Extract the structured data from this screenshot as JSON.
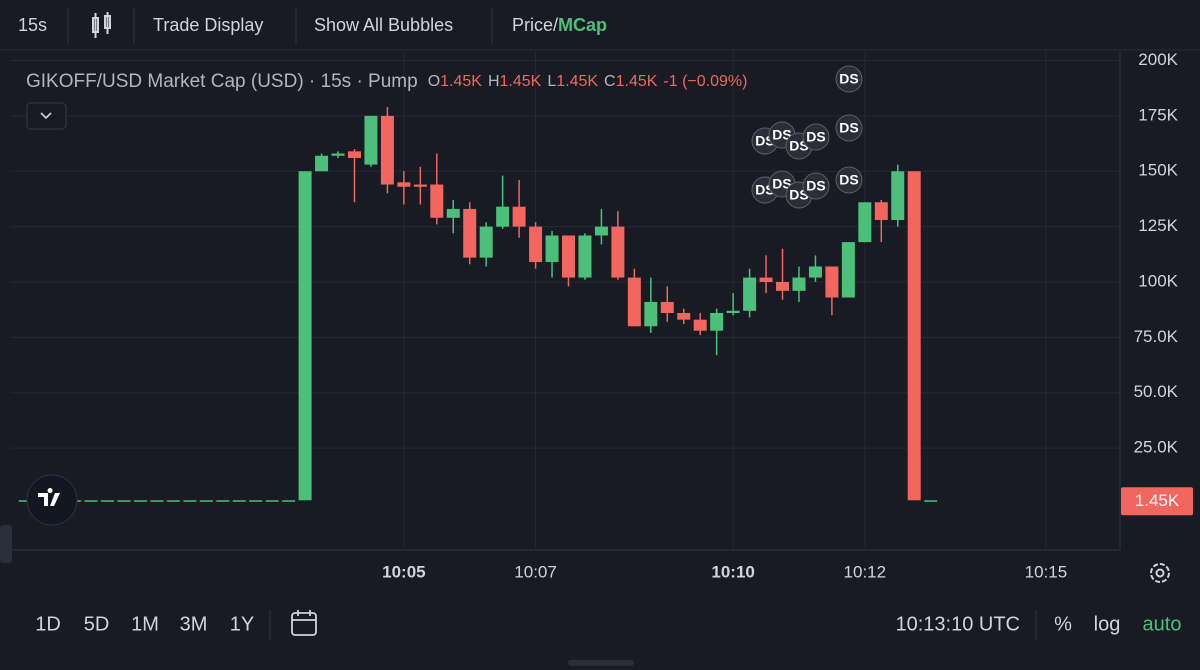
{
  "toolbar": {
    "interval": "15s",
    "trade_display": "Trade Display",
    "bubbles": "Show All Bubbles",
    "price": "Price",
    "slash": "/",
    "mcap": "MCap"
  },
  "chart_data": {
    "type": "candlestick",
    "legend": {
      "title": "GIKOFF/USD Market Cap (USD) · 15s · Pump",
      "o_label": "O",
      "o": "1.45K",
      "h_label": "H",
      "h": "1.45K",
      "l_label": "L",
      "l": "1.45K",
      "c_label": "C",
      "c": "1.45K",
      "change": "-1 (−0.09%)"
    },
    "categories": [
      null,
      null,
      null,
      null,
      null,
      null,
      null,
      null,
      null,
      null,
      null,
      null,
      null,
      null,
      null,
      null,
      null,
      null,
      null,
      null,
      null,
      null,
      null,
      "10:05",
      null,
      null,
      null,
      null,
      null,
      null,
      null,
      "10:07",
      null,
      null,
      null,
      null,
      null,
      null,
      null,
      null,
      null,
      null,
      null,
      "10:10",
      null,
      null,
      null,
      null,
      null,
      null,
      null,
      "10:12",
      null,
      null,
      null,
      null,
      null,
      null,
      null,
      null,
      null,
      null,
      "10:15",
      null,
      null,
      null,
      null
    ],
    "open": [
      1450,
      1450,
      1450,
      1450,
      1450,
      1450,
      1450,
      1450,
      1450,
      1450,
      1450,
      1450,
      1450,
      1450,
      1450,
      1450,
      1450,
      1450,
      150000,
      157000,
      159000,
      153000,
      175000,
      145000,
      144000,
      144000,
      129000,
      133000,
      111000,
      125000,
      134000,
      125000,
      109000,
      121000,
      102000,
      121000,
      125000,
      102000,
      80000,
      91000,
      86000,
      83000,
      78000,
      86000,
      87000,
      102000,
      100000,
      96000,
      102000,
      107000,
      93000,
      118000,
      136000,
      128000,
      150000,
      1450,
      null,
      null,
      null,
      null,
      null,
      null,
      null,
      null,
      null,
      null,
      null
    ],
    "high": [
      1450,
      1450,
      1450,
      1450,
      1450,
      1450,
      1450,
      1450,
      1450,
      1450,
      1450,
      1450,
      1450,
      1450,
      1450,
      1450,
      1450,
      150000,
      158000,
      159000,
      160000,
      175000,
      179000,
      150000,
      152000,
      158000,
      137000,
      136000,
      127000,
      148000,
      146000,
      127000,
      123000,
      121000,
      122000,
      133000,
      132000,
      106000,
      102000,
      98000,
      88000,
      86000,
      88000,
      95000,
      106000,
      112000,
      115000,
      107000,
      112000,
      107000,
      118000,
      136000,
      137000,
      153000,
      150000,
      1450,
      null,
      null,
      null,
      null,
      null,
      null,
      null,
      null,
      null,
      null,
      null
    ],
    "low": [
      1450,
      1450,
      1450,
      1450,
      1450,
      1450,
      1450,
      1450,
      1450,
      1450,
      1450,
      1450,
      1450,
      1450,
      1450,
      1450,
      1450,
      1450,
      150000,
      156000,
      136000,
      152000,
      140000,
      135000,
      135000,
      126000,
      122000,
      108000,
      107000,
      124000,
      120000,
      106000,
      102000,
      98000,
      101000,
      117000,
      101000,
      80000,
      77000,
      82000,
      81000,
      76000,
      67000,
      85000,
      84000,
      95000,
      92000,
      91000,
      100000,
      85000,
      93000,
      118000,
      118000,
      125000,
      1450,
      1450,
      null,
      null,
      null,
      null,
      null,
      null,
      null,
      null,
      null,
      null,
      null
    ],
    "close": [
      1450,
      1450,
      1450,
      1450,
      1450,
      1450,
      1450,
      1450,
      1450,
      1450,
      1450,
      1450,
      1450,
      1450,
      1450,
      1450,
      1450,
      150000,
      157000,
      158000,
      156000,
      175000,
      144000,
      143000,
      143000,
      129000,
      133000,
      111000,
      125000,
      134000,
      125000,
      109000,
      121000,
      102000,
      121000,
      125000,
      102000,
      80000,
      91000,
      86000,
      83000,
      78000,
      86000,
      87000,
      102000,
      100000,
      96000,
      102000,
      107000,
      93000,
      118000,
      136000,
      128000,
      150000,
      1450,
      1450,
      null,
      null,
      null,
      null,
      null,
      null,
      null,
      null,
      null,
      null,
      null
    ],
    "up_color": "#4cc07a",
    "down_color": "#f2665f",
    "ylim": [
      -21000,
      207000
    ],
    "yticks": [
      {
        "value": 25000,
        "label": "25.0K"
      },
      {
        "value": 50000,
        "label": "50.0K"
      },
      {
        "value": 75000,
        "label": "75.0K"
      },
      {
        "value": 100000,
        "label": "100K"
      },
      {
        "value": 125000,
        "label": "125K"
      },
      {
        "value": 150000,
        "label": "150K"
      },
      {
        "value": 175000,
        "label": "175K"
      },
      {
        "value": 200000,
        "label": "200K"
      }
    ],
    "grid": true,
    "last_price": {
      "value": 1450,
      "label": "1.45K"
    },
    "bubbles": [
      "DS",
      "DS",
      "DS",
      "DS",
      "DS",
      "DS",
      "DS",
      "DS",
      "DS",
      "DS",
      "DS"
    ]
  },
  "footer": {
    "ranges": [
      "1D",
      "5D",
      "1M",
      "3M",
      "1Y"
    ],
    "clock": "10:13:10 UTC",
    "percent": "%",
    "log": "log",
    "auto": "auto"
  }
}
